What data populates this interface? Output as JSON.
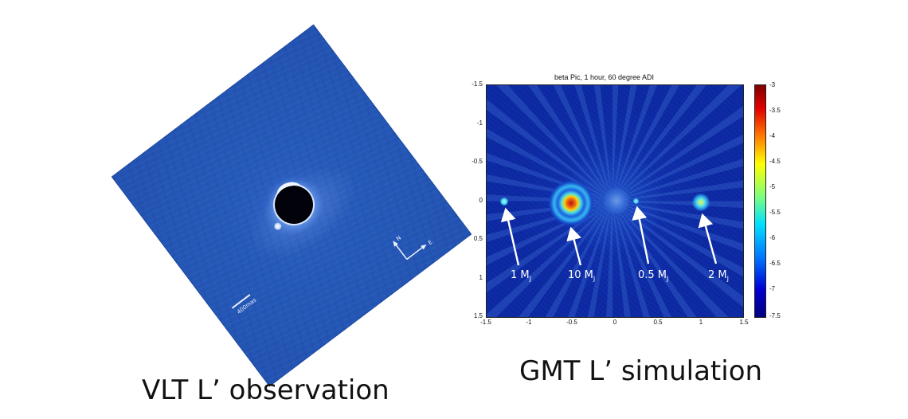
{
  "left_panel": {
    "caption": "VLT L’ observation",
    "scale_label": "400mas",
    "compass_n": "N",
    "compass_e": "E"
  },
  "right_panel": {
    "plot_title": "beta Pic, 1 hour, 60 degree ADI",
    "caption": "GMT L’ simulation",
    "y_ticks": [
      "-1.5",
      "-1",
      "-0.5",
      "0",
      "0.5",
      "1",
      "1.5"
    ],
    "x_ticks": [
      "-1.5",
      "-1",
      "-0.5",
      "0",
      "0.5",
      "1",
      "1.5"
    ],
    "colorbar_ticks": [
      "-3",
      "-3.5",
      "-4",
      "-4.5",
      "-5",
      "-5.5",
      "-6",
      "-6.5",
      "-7",
      "-7.5"
    ],
    "planet_labels": [
      {
        "label": "1 M",
        "subscript": "J"
      },
      {
        "label": "10 M",
        "subscript": "J"
      },
      {
        "label": "0.5 M",
        "subscript": "J"
      },
      {
        "label": "2 M",
        "subscript": "J"
      }
    ]
  },
  "colors": {
    "vlt_background": "#2559b9",
    "gmt_background": "#0d2aa6",
    "annotation": "#ffffff"
  }
}
